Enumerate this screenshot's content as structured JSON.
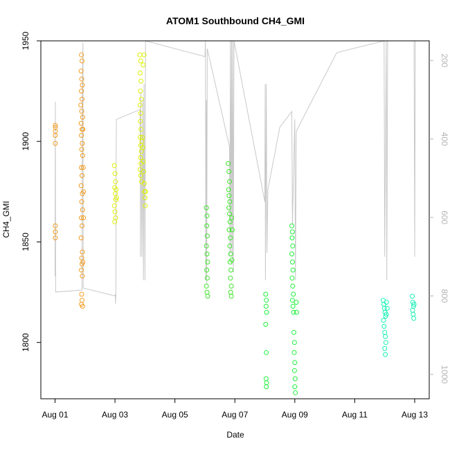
{
  "chart_data": {
    "type": "scatter",
    "title": "ATOM1 Southbound CH4_GMI",
    "xlabel": "Date",
    "ylabel": "CH4_GMI",
    "xlim": [
      0,
      12.5
    ],
    "ylim": [
      1772,
      1950
    ],
    "x_ticks": [
      {
        "x": 0,
        "label": "Aug 01"
      },
      {
        "x": 2,
        "label": "Aug 03"
      },
      {
        "x": 4,
        "label": "Aug 05"
      },
      {
        "x": 6,
        "label": "Aug 07"
      },
      {
        "x": 8,
        "label": "Aug 09"
      },
      {
        "x": 10,
        "label": "Aug 11"
      },
      {
        "x": 12,
        "label": "Aug 13"
      }
    ],
    "y_ticks": [
      1800,
      1850,
      1900,
      1950
    ],
    "y2": {
      "label_color": "#b4b4b4",
      "line_color": "#c8c8c8",
      "lim": [
        1062,
        150
      ],
      "ticks": [
        200,
        400,
        600,
        800,
        1000
      ]
    },
    "series": [
      {
        "color": "#f39c1e",
        "points": [
          [
            0.01,
            1908
          ],
          [
            0.01,
            1905
          ],
          [
            0.01,
            1903
          ],
          [
            0.01,
            1899
          ],
          [
            0.01,
            1907
          ],
          [
            0.01,
            1858
          ],
          [
            0.01,
            1855
          ],
          [
            0.01,
            1852
          ],
          [
            0.88,
            1943
          ],
          [
            0.9,
            1940
          ],
          [
            0.87,
            1935
          ],
          [
            0.89,
            1931
          ],
          [
            0.91,
            1928
          ],
          [
            0.88,
            1925
          ],
          [
            0.9,
            1921
          ],
          [
            0.86,
            1918
          ],
          [
            0.89,
            1915
          ],
          [
            0.92,
            1912
          ],
          [
            0.87,
            1909
          ],
          [
            0.9,
            1906
          ],
          [
            0.88,
            1903
          ],
          [
            0.91,
            1899
          ],
          [
            0.89,
            1896
          ],
          [
            0.92,
            1893
          ],
          [
            0.88,
            1887
          ],
          [
            0.9,
            1883
          ],
          [
            0.87,
            1878
          ],
          [
            0.91,
            1874
          ],
          [
            0.89,
            1870
          ],
          [
            0.92,
            1866
          ],
          [
            0.88,
            1862
          ],
          [
            0.9,
            1858
          ],
          [
            0.87,
            1852
          ],
          [
            0.91,
            1845
          ],
          [
            0.89,
            1842
          ],
          [
            0.9,
            1839
          ],
          [
            0.88,
            1836
          ],
          [
            0.91,
            1833
          ],
          [
            0.89,
            1824
          ],
          [
            0.9,
            1821
          ],
          [
            0.88,
            1819
          ],
          [
            0.92,
            1818
          ],
          [
            0.93,
            1906
          ],
          [
            0.94,
            1887
          ],
          [
            0.95,
            1875
          ],
          [
            0.95,
            1862
          ],
          [
            0.93,
            1840
          ]
        ]
      },
      {
        "color": "#dcf000",
        "points": [
          [
            1.98,
            1888
          ],
          [
            2.0,
            1884
          ],
          [
            2.02,
            1880
          ],
          [
            1.99,
            1877
          ],
          [
            2.01,
            1874
          ],
          [
            2.03,
            1871
          ],
          [
            1.98,
            1868
          ],
          [
            2.0,
            1865
          ],
          [
            2.02,
            1862
          ],
          [
            1.99,
            1860
          ],
          [
            2.04,
            1876
          ],
          [
            2.05,
            1872
          ],
          [
            2.83,
            1943
          ],
          [
            2.86,
            1940
          ],
          [
            2.84,
            1934
          ],
          [
            2.87,
            1930
          ],
          [
            2.85,
            1925
          ],
          [
            2.88,
            1921
          ],
          [
            2.84,
            1918
          ],
          [
            2.86,
            1914
          ],
          [
            2.85,
            1910
          ],
          [
            2.87,
            1906
          ],
          [
            2.84,
            1902
          ],
          [
            2.86,
            1898
          ],
          [
            2.88,
            1895
          ],
          [
            2.85,
            1892
          ],
          [
            2.87,
            1889
          ],
          [
            2.84,
            1886
          ],
          [
            2.86,
            1883
          ],
          [
            2.89,
            1880
          ],
          [
            2.92,
            1902
          ],
          [
            2.93,
            1897
          ],
          [
            2.95,
            1890
          ],
          [
            2.96,
            1885
          ],
          [
            2.98,
            1879
          ],
          [
            2.99,
            1875
          ],
          [
            3.0,
            1872
          ],
          [
            3.01,
            1868
          ],
          [
            2.97,
            1943
          ],
          [
            2.94,
            1938
          ],
          [
            3.02,
            1875
          ],
          [
            2.9,
            1900
          ]
        ]
      },
      {
        "color": "#3ce628",
        "points": [
          [
            5.05,
            1867
          ],
          [
            5.07,
            1863
          ],
          [
            5.06,
            1858
          ],
          [
            5.08,
            1853
          ],
          [
            5.05,
            1848
          ],
          [
            5.07,
            1844
          ],
          [
            5.09,
            1840
          ],
          [
            5.06,
            1836
          ],
          [
            5.08,
            1832
          ],
          [
            5.05,
            1828
          ],
          [
            5.07,
            1825
          ],
          [
            5.09,
            1823
          ],
          [
            5.78,
            1889
          ],
          [
            5.8,
            1885
          ],
          [
            5.82,
            1880
          ],
          [
            5.79,
            1876
          ],
          [
            5.81,
            1873
          ],
          [
            5.83,
            1870
          ],
          [
            5.8,
            1867
          ],
          [
            5.82,
            1864
          ],
          [
            5.84,
            1860
          ],
          [
            5.81,
            1856
          ],
          [
            5.85,
            1852
          ],
          [
            5.83,
            1848
          ],
          [
            5.86,
            1844
          ],
          [
            5.84,
            1840
          ],
          [
            5.87,
            1836
          ],
          [
            5.85,
            1832
          ],
          [
            5.88,
            1828
          ],
          [
            5.86,
            1825
          ],
          [
            5.88,
            1823
          ],
          [
            5.9,
            1841
          ],
          [
            5.91,
            1856
          ],
          [
            5.89,
            1862
          ]
        ]
      },
      {
        "color": "#1ef03c",
        "points": [
          [
            7.03,
            1824
          ],
          [
            7.05,
            1821
          ],
          [
            7.04,
            1818
          ],
          [
            7.06,
            1815
          ],
          [
            7.03,
            1809
          ],
          [
            7.05,
            1795
          ],
          [
            7.04,
            1782
          ],
          [
            7.06,
            1780
          ],
          [
            7.05,
            1778
          ],
          [
            7.9,
            1858
          ],
          [
            7.92,
            1855
          ],
          [
            7.91,
            1852
          ],
          [
            7.93,
            1848
          ],
          [
            7.9,
            1844
          ],
          [
            7.92,
            1840
          ],
          [
            7.94,
            1836
          ],
          [
            7.91,
            1832
          ],
          [
            7.93,
            1828
          ],
          [
            7.95,
            1824
          ],
          [
            7.92,
            1821
          ],
          [
            7.94,
            1818
          ],
          [
            7.96,
            1815
          ],
          [
            7.97,
            1805
          ],
          [
            7.99,
            1800
          ],
          [
            7.98,
            1795
          ],
          [
            8.0,
            1790
          ],
          [
            7.99,
            1786
          ],
          [
            8.01,
            1782
          ],
          [
            8.0,
            1778
          ],
          [
            8.02,
            1775
          ],
          [
            8.0,
            1771
          ],
          [
            8.05,
            1820
          ],
          [
            8.06,
            1815
          ]
        ]
      },
      {
        "color": "#14f0b4",
        "points": [
          [
            10.95,
            1821
          ],
          [
            10.97,
            1819
          ],
          [
            10.99,
            1817
          ],
          [
            11.01,
            1815
          ],
          [
            11.03,
            1813
          ],
          [
            10.96,
            1811
          ],
          [
            10.98,
            1808
          ],
          [
            11.0,
            1805
          ],
          [
            11.02,
            1803
          ],
          [
            11.04,
            1800
          ],
          [
            11.0,
            1797
          ],
          [
            11.02,
            1794
          ],
          [
            11.06,
            1820
          ],
          [
            11.08,
            1817
          ],
          [
            11.05,
            1814
          ],
          [
            11.92,
            1823
          ],
          [
            11.94,
            1820
          ],
          [
            11.96,
            1818
          ],
          [
            11.93,
            1816
          ],
          [
            11.95,
            1814
          ],
          [
            11.97,
            1812
          ],
          [
            11.98,
            1819
          ]
        ]
      }
    ],
    "altitude_line": [
      [
        0.0,
        750
      ],
      [
        0.01,
        305
      ],
      [
        0.02,
        790
      ],
      [
        0.9,
        785
      ],
      [
        0.91,
        265
      ],
      [
        0.93,
        155
      ],
      [
        0.94,
        780
      ],
      [
        2.0,
        800
      ],
      [
        2.01,
        795
      ],
      [
        2.02,
        820
      ],
      [
        2.03,
        795
      ],
      [
        2.04,
        420
      ],
      [
        2.05,
        350
      ],
      [
        2.84,
        325
      ],
      [
        2.85,
        700
      ],
      [
        2.86,
        280
      ],
      [
        2.9,
        700
      ],
      [
        2.93,
        300
      ],
      [
        2.95,
        760
      ],
      [
        2.97,
        260
      ],
      [
        3.0,
        760
      ],
      [
        3.02,
        150
      ],
      [
        5.0,
        190
      ],
      [
        5.02,
        100
      ],
      [
        5.03,
        760
      ],
      [
        5.05,
        300
      ],
      [
        5.06,
        770
      ],
      [
        5.07,
        450
      ],
      [
        5.08,
        170
      ],
      [
        5.82,
        420
      ],
      [
        5.83,
        700
      ],
      [
        5.85,
        150
      ],
      [
        5.87,
        690
      ],
      [
        5.89,
        150
      ],
      [
        5.91,
        720
      ],
      [
        5.93,
        150
      ],
      [
        5.95,
        740
      ],
      [
        5.97,
        150
      ],
      [
        7.0,
        560
      ],
      [
        7.01,
        260
      ],
      [
        7.02,
        760
      ],
      [
        7.05,
        260
      ],
      [
        7.07,
        690
      ],
      [
        7.1,
        530
      ],
      [
        7.5,
        370
      ],
      [
        7.9,
        330
      ],
      [
        7.92,
        620
      ],
      [
        8.0,
        350
      ],
      [
        8.02,
        760
      ],
      [
        8.05,
        380
      ],
      [
        9.4,
        180
      ],
      [
        10.98,
        150
      ],
      [
        11.0,
        700
      ],
      [
        11.05,
        150
      ],
      [
        11.07,
        760
      ],
      [
        11.1,
        150
      ],
      [
        11.98,
        150
      ],
      [
        12.0,
        700
      ],
      [
        12.02,
        150
      ]
    ]
  }
}
